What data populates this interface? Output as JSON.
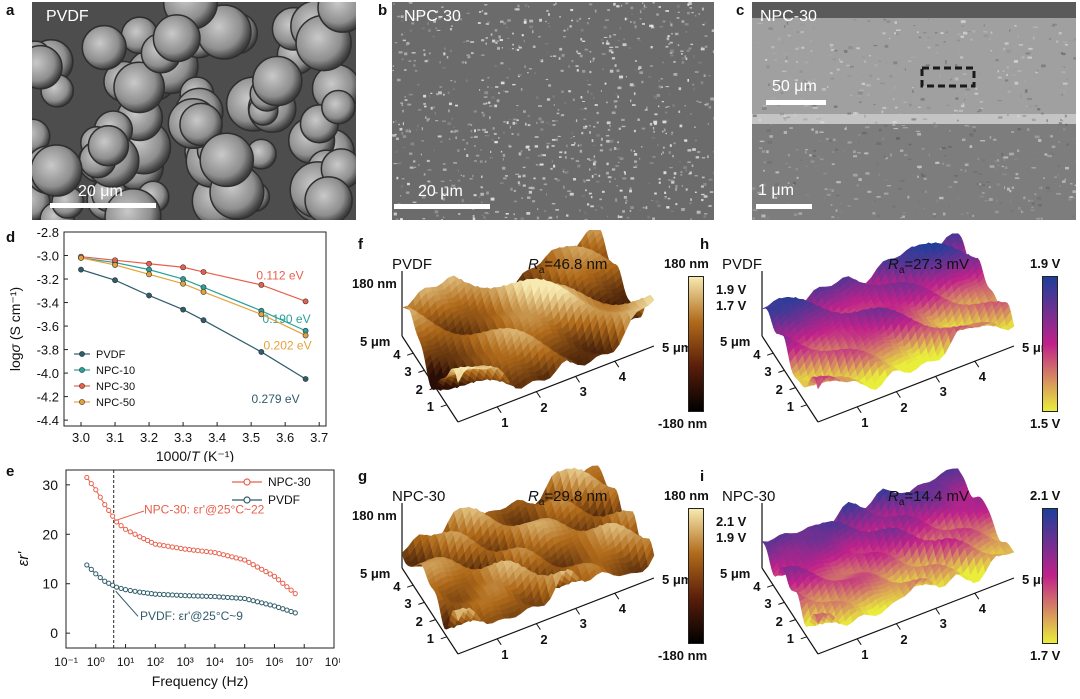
{
  "panels": {
    "a": {
      "letter": "a",
      "label": "PVDF",
      "scale": "20 μm"
    },
    "b": {
      "letter": "b",
      "label": "NPC-30",
      "scale": "20 μm"
    },
    "c": {
      "letter": "c",
      "label": "NPC-30",
      "scale_top": "50 μm",
      "scale_bottom": "1 μm"
    },
    "d": {
      "letter": "d"
    },
    "e": {
      "letter": "e"
    },
    "f": {
      "letter": "f",
      "title": "PVDF",
      "ra_sym": "R",
      "ra_sub": "a",
      "ra_val": "=46.8 nm",
      "zmax": "180 nm",
      "cb_top": "180 nm",
      "cb_bottom": "-180 nm"
    },
    "g": {
      "letter": "g",
      "title": "NPC-30",
      "ra_sym": "R",
      "ra_sub": "a",
      "ra_val": "=29.8 nm",
      "zmax": "180 nm",
      "cb_top": "180 nm",
      "cb_bottom": "-180 nm"
    },
    "h": {
      "letter": "h",
      "title": "PVDF",
      "ra_sym": "R",
      "ra_sub": "a",
      "ra_val": "=27.3 mV",
      "z1": "1.9 V",
      "z2": "1.7 V",
      "cb_top": "1.9 V",
      "cb_bottom": "1.5 V"
    },
    "i": {
      "letter": "i",
      "title": "NPC-30",
      "ra_sym": "R",
      "ra_sub": "a",
      "ra_val": "=14.4 mV",
      "z1": "2.1 V",
      "z2": "1.9 V",
      "cb_top": "2.1 V",
      "cb_bottom": "1.7 V"
    }
  },
  "afm_axis": {
    "y_top": "5 μm",
    "y_ticks": [
      "4",
      "3",
      "2",
      "1"
    ],
    "x_ticks": [
      "1",
      "2",
      "3",
      "4"
    ],
    "x_end": "5 μm"
  },
  "colors": {
    "afm_low": "#2a0d05",
    "afm_mid": "#b06a1a",
    "afm_high": "#f7e9b0",
    "kpfm_low": "#e9ee3a",
    "kpfm_mid": "#c0218a",
    "kpfm_high": "#1d3f9a",
    "pvdf": "#2f5c6a",
    "npc10": "#2aa198",
    "npc30": "#e8604c",
    "npc50": "#e5a23a"
  },
  "chart_data": [
    {
      "type": "line",
      "xlabel": "1000/T (K⁻¹)",
      "ylabel": "logσ (S cm⁻¹)",
      "xlim": [
        2.95,
        3.72
      ],
      "ylim": [
        -4.45,
        -2.8
      ],
      "xticks": [
        "3.0",
        "3.1",
        "3.2",
        "3.3",
        "3.4",
        "3.5",
        "3.6",
        "3.7"
      ],
      "yticks": [
        "-2.8",
        "-3.0",
        "-3.2",
        "-3.4",
        "-3.6",
        "-3.8",
        "-4.0",
        "-4.2",
        "-4.4"
      ],
      "legend_position": "bottom-left",
      "series": [
        {
          "name": "PVDF",
          "color": "#2f5c6a",
          "x": [
            3.0,
            3.1,
            3.2,
            3.3,
            3.36,
            3.53,
            3.66
          ],
          "y": [
            -3.12,
            -3.21,
            -3.34,
            -3.46,
            -3.55,
            -3.82,
            -4.05
          ],
          "label": "0.279 eV"
        },
        {
          "name": "NPC-10",
          "color": "#2aa198",
          "x": [
            3.0,
            3.1,
            3.2,
            3.3,
            3.36,
            3.53,
            3.66
          ],
          "y": [
            -3.02,
            -3.06,
            -3.12,
            -3.2,
            -3.27,
            -3.47,
            -3.64
          ],
          "label": "0.190 eV"
        },
        {
          "name": "NPC-30",
          "color": "#e8604c",
          "x": [
            3.0,
            3.1,
            3.2,
            3.3,
            3.36,
            3.53,
            3.66
          ],
          "y": [
            -3.01,
            -3.04,
            -3.07,
            -3.1,
            -3.14,
            -3.25,
            -3.39
          ],
          "label": "0.112 eV"
        },
        {
          "name": "NPC-50",
          "color": "#e5a23a",
          "x": [
            3.0,
            3.1,
            3.2,
            3.3,
            3.36,
            3.53,
            3.66
          ],
          "y": [
            -3.02,
            -3.08,
            -3.16,
            -3.24,
            -3.31,
            -3.5,
            -3.68
          ],
          "label": "0.202 eV"
        }
      ]
    },
    {
      "type": "line",
      "xlabel": "Frequency (Hz)",
      "ylabel": "εr'",
      "x_scale": "log",
      "xlim": [
        0.1,
        100000000
      ],
      "ylim": [
        -3,
        33
      ],
      "xticks": [
        "10⁻¹",
        "10⁰",
        "10¹",
        "10²",
        "10³",
        "10⁴",
        "10⁵",
        "10⁶",
        "10⁷",
        "10⁸"
      ],
      "yticks": [
        "30",
        "20",
        "10",
        "0"
      ],
      "legend_position": "top-right",
      "marker_line": 4,
      "series": [
        {
          "name": "NPC-30",
          "color": "#e8604c",
          "x": [
            0.5,
            1,
            2,
            5,
            10,
            30,
            100,
            1000,
            10000,
            100000,
            1000000,
            5000000
          ],
          "y": [
            31.5,
            29,
            26,
            22.5,
            21,
            19.5,
            18,
            17,
            16.3,
            14.8,
            11.5,
            8
          ],
          "annotation": "NPC-30: εr'@25°C~22"
        },
        {
          "name": "PVDF",
          "color": "#2f5c6a",
          "x": [
            0.5,
            1,
            2,
            5,
            10,
            30,
            100,
            1000,
            10000,
            100000,
            1000000,
            5000000
          ],
          "y": [
            13.8,
            12,
            10.5,
            9.3,
            8.8,
            8.3,
            7.9,
            7.6,
            7.4,
            7.0,
            5.5,
            4.1
          ],
          "annotation": "PVDF: εr'@25°C~9"
        }
      ]
    }
  ]
}
